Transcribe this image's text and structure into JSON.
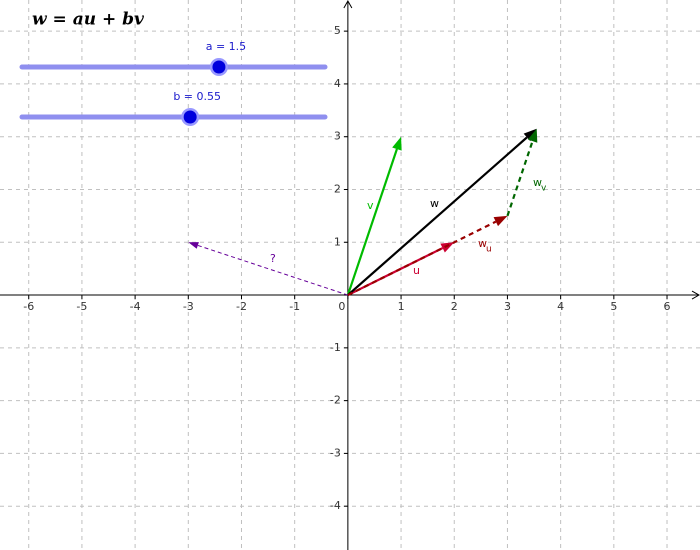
{
  "chart_data": {
    "type": "vector",
    "title": "w = au + bv",
    "xlim": [
      -6.54,
      6.62
    ],
    "ylim": [
      -4.83,
      5.59
    ],
    "xticks": [
      -6,
      -5,
      -4,
      -3,
      -2,
      -1,
      0,
      1,
      2,
      3,
      4,
      5,
      6
    ],
    "yticks": [
      -4,
      -3,
      -2,
      -1,
      0,
      1,
      2,
      3,
      4,
      5
    ],
    "grid": true,
    "sliders": [
      {
        "name": "a",
        "value": 1.5,
        "label": "a = 1.5",
        "min": -5,
        "max": 5
      },
      {
        "name": "b",
        "value": 0.55,
        "label": "b = 0.55",
        "min": -5,
        "max": 5
      }
    ],
    "vectors": [
      {
        "name": "u",
        "color": "#cc0033",
        "from": [
          0,
          0
        ],
        "to": [
          2,
          1
        ],
        "dashed": false
      },
      {
        "name": "v",
        "color": "#00bb00",
        "from": [
          0,
          0
        ],
        "to": [
          1,
          3
        ],
        "dashed": false
      },
      {
        "name": "w",
        "color": "#000000",
        "from": [
          0,
          0
        ],
        "to": [
          3.55,
          3.15
        ],
        "dashed": false
      },
      {
        "name": "w",
        "subscript": "u",
        "color": "#990000",
        "from": [
          0,
          0
        ],
        "to": [
          3,
          1.5
        ],
        "dashed": true
      },
      {
        "name": "w",
        "subscript": "v",
        "color": "#006600",
        "from": [
          3,
          1.5
        ],
        "to": [
          3.55,
          3.15
        ],
        "dashed": true
      },
      {
        "name": "?",
        "color": "#660099",
        "from": [
          0,
          0
        ],
        "to": [
          -3,
          1
        ],
        "dashed": true
      }
    ]
  }
}
